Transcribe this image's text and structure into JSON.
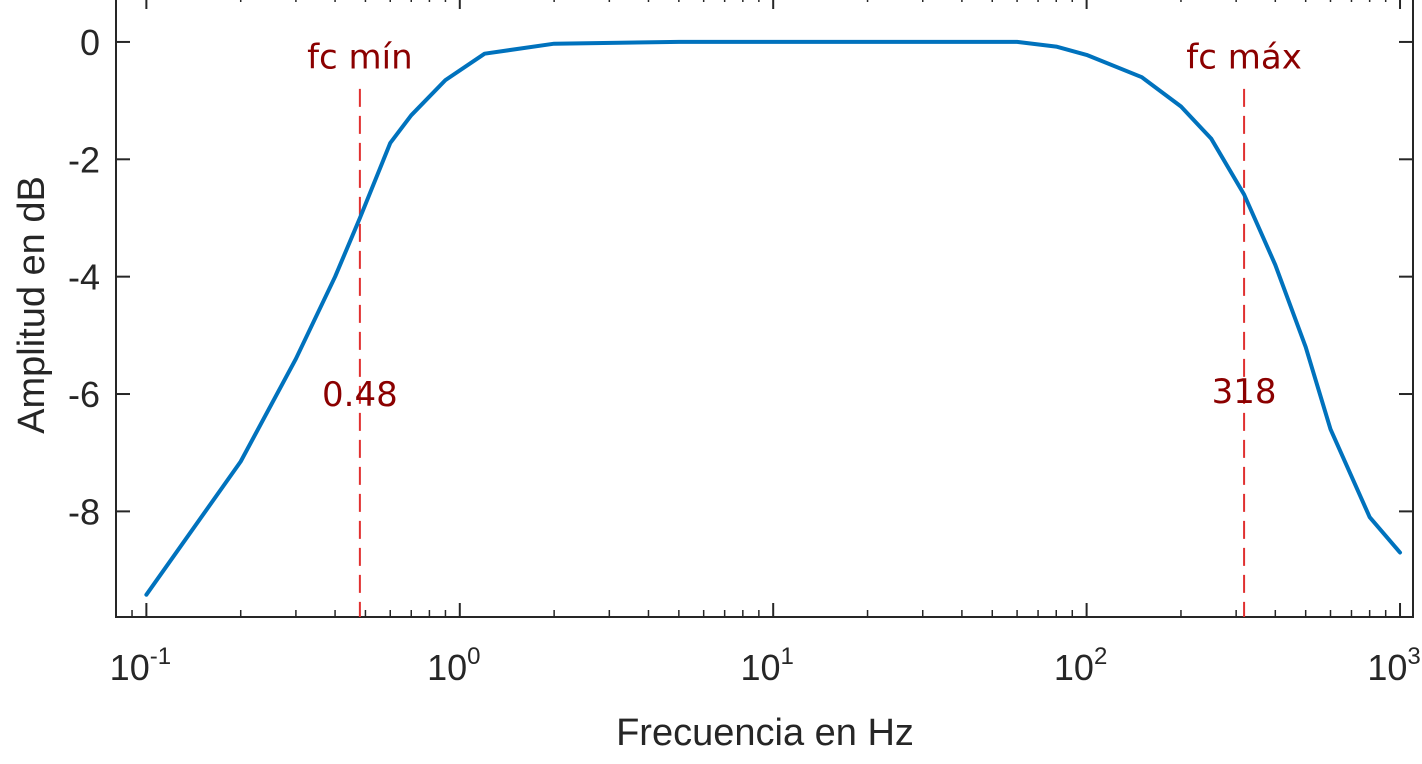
{
  "chart_data": {
    "type": "line",
    "title": "",
    "xlabel": "Frecuencia en Hz",
    "ylabel": "Amplitud en dB",
    "xscale": "log",
    "xlim": [
      0.08,
      1100
    ],
    "ylim": [
      -9.8,
      0.8
    ],
    "grid": false,
    "x_ticks": [
      {
        "value": 0.1,
        "base": "10",
        "exp": "-1"
      },
      {
        "value": 1,
        "base": "10",
        "exp": "0"
      },
      {
        "value": 10,
        "base": "10",
        "exp": "1"
      },
      {
        "value": 100,
        "base": "10",
        "exp": "2"
      },
      {
        "value": 1000,
        "base": "10",
        "exp": "3"
      }
    ],
    "y_ticks": [
      {
        "value": 0,
        "label": "0"
      },
      {
        "value": -2,
        "label": "-2"
      },
      {
        "value": -4,
        "label": "-4"
      },
      {
        "value": -6,
        "label": "-6"
      },
      {
        "value": -8,
        "label": "-8"
      }
    ],
    "series": [
      {
        "color": "#0072bd",
        "x": [
          0.1,
          0.2,
          0.3,
          0.4,
          0.48,
          0.6,
          0.7,
          0.9,
          1.2,
          2,
          5,
          10,
          20,
          60,
          80,
          100,
          150,
          200,
          250,
          318,
          400,
          500,
          600,
          800,
          1000
        ],
        "y": [
          -9.42,
          -7.15,
          -5.4,
          -4.0,
          -3.0,
          -1.72,
          -1.25,
          -0.65,
          -0.2,
          -0.03,
          0.0,
          0.0,
          0.0,
          0.0,
          -0.08,
          -0.22,
          -0.6,
          -1.1,
          -1.65,
          -2.6,
          -3.8,
          -5.2,
          -6.6,
          -8.1,
          -8.7
        ]
      }
    ],
    "markers": [
      {
        "x": 0.48,
        "color": "#e03030",
        "name_label": "fc mín",
        "value_label": "0.48",
        "name_y": -0.45,
        "value_y": -6.2
      },
      {
        "x": 318,
        "color": "#e03030",
        "name_label": "fc máx",
        "value_label": "318",
        "name_y": -0.45,
        "value_y": -6.15
      }
    ]
  }
}
